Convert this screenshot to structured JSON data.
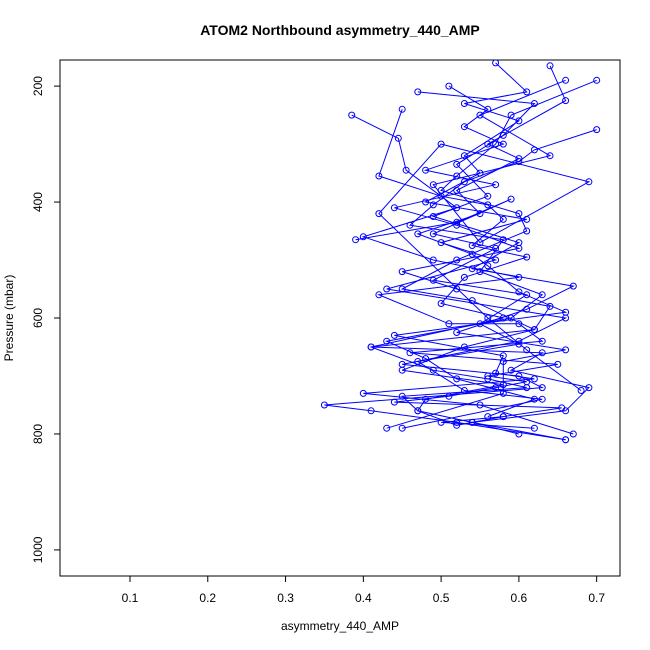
{
  "chart_data": {
    "type": "scatter",
    "title": "ATOM2 Northbound asymmetry_440_AMP",
    "xlabel": "asymmetry_440_AMP",
    "ylabel": "Pressure (mbar)",
    "xlim": [
      0.01,
      0.73
    ],
    "ylim": [
      1045,
      155
    ],
    "y_inverted": true,
    "x_ticks": [
      0.1,
      0.2,
      0.3,
      0.4,
      0.5,
      0.6,
      0.7
    ],
    "x_tick_labels": [
      "0.1",
      "0.2",
      "0.3",
      "0.4",
      "0.5",
      "0.6",
      "0.7"
    ],
    "y_ticks": [
      200,
      400,
      600,
      800,
      1000
    ],
    "y_tick_labels": [
      "200",
      "400",
      "600",
      "800",
      "1000"
    ],
    "grid": false,
    "series_color": "#0000ff",
    "markers": "open-circle",
    "connected": true,
    "series": [
      {
        "x": [
          0.385,
          0.445,
          0.455,
          0.52,
          0.4,
          0.49,
          0.6,
          0.42,
          0.51,
          0.6,
          0.63,
          0.46,
          0.65,
          0.56,
          0.61,
          0.57,
          0.51,
          0.44,
          0.655,
          0.58,
          0.5,
          0.62
        ],
        "y": [
          250,
          290,
          345,
          410,
          460,
          500,
          530,
          560,
          610,
          610,
          640,
          660,
          680,
          700,
          710,
          720,
          735,
          745,
          755,
          770,
          780,
          790
        ]
      },
      {
        "x": [
          0.51,
          0.56,
          0.53,
          0.58,
          0.48,
          0.57,
          0.44,
          0.52,
          0.6,
          0.45,
          0.52,
          0.64,
          0.62,
          0.41,
          0.63,
          0.59,
          0.69,
          0.66,
          0.54,
          0.66
        ],
        "y": [
          200,
          240,
          270,
          300,
          345,
          370,
          410,
          440,
          480,
          520,
          550,
          580,
          620,
          650,
          660,
          690,
          720,
          760,
          780,
          810
        ]
      },
      {
        "x": [
          0.57,
          0.61,
          0.53,
          0.6,
          0.53,
          0.55,
          0.48,
          0.61,
          0.5,
          0.57,
          0.43,
          0.66,
          0.6,
          0.45,
          0.6,
          0.63,
          0.35,
          0.41,
          0.52,
          0.66
        ],
        "y": [
          160,
          210,
          230,
          260,
          320,
          350,
          400,
          430,
          470,
          500,
          550,
          600,
          640,
          680,
          700,
          720,
          750,
          760,
          780,
          810
        ]
      },
      {
        "x": [
          0.64,
          0.66,
          0.56,
          0.6,
          0.52,
          0.55,
          0.47,
          0.54,
          0.56,
          0.6,
          0.66,
          0.44,
          0.58,
          0.57,
          0.62,
          0.4,
          0.55,
          0.67
        ],
        "y": [
          165,
          225,
          300,
          325,
          380,
          420,
          455,
          490,
          510,
          555,
          590,
          630,
          665,
          695,
          705,
          730,
          750,
          800
        ]
      },
      {
        "x": [
          0.7,
          0.59,
          0.57,
          0.52,
          0.5,
          0.6,
          0.61,
          0.52,
          0.45,
          0.54,
          0.62,
          0.53,
          0.45,
          0.58,
          0.48,
          0.47,
          0.54,
          0.6
        ],
        "y": [
          190,
          250,
          300,
          355,
          380,
          420,
          450,
          500,
          550,
          570,
          620,
          650,
          690,
          715,
          740,
          760,
          780,
          800
        ]
      },
      {
        "x": [
          0.7,
          0.62,
          0.6,
          0.53,
          0.49,
          0.46,
          0.58,
          0.55,
          0.63,
          0.59,
          0.43,
          0.48,
          0.52,
          0.62,
          0.56
        ],
        "y": [
          275,
          310,
          330,
          365,
          405,
          440,
          465,
          520,
          560,
          600,
          640,
          670,
          705,
          740,
          770
        ]
      },
      {
        "x": [
          0.45,
          0.42,
          0.5,
          0.56,
          0.58,
          0.54,
          0.61,
          0.53,
          0.5,
          0.58,
          0.41,
          0.49,
          0.56,
          0.61,
          0.45,
          0.47,
          0.52,
          0.58
        ],
        "y": [
          240,
          355,
          390,
          405,
          430,
          475,
          495,
          530,
          575,
          600,
          650,
          690,
          705,
          720,
          735,
          760,
          785,
          770
        ]
      },
      {
        "x": [
          0.47,
          0.62,
          0.58,
          0.52,
          0.56,
          0.49,
          0.6,
          0.54,
          0.67,
          0.61,
          0.52,
          0.66,
          0.58,
          0.58,
          0.43
        ],
        "y": [
          210,
          230,
          285,
          335,
          390,
          425,
          470,
          515,
          545,
          585,
          625,
          655,
          675,
          730,
          790
        ]
      },
      {
        "x": [
          0.39,
          0.52,
          0.59,
          0.49,
          0.57,
          0.49,
          0.61,
          0.55,
          0.6,
          0.47,
          0.53,
          0.63,
          0.45
        ],
        "y": [
          465,
          435,
          395,
          455,
          480,
          535,
          560,
          610,
          645,
          675,
          725,
          740,
          790
        ]
      },
      {
        "x": [
          0.66,
          0.55,
          0.64,
          0.49,
          0.55,
          0.69,
          0.5,
          0.42,
          0.56,
          0.61,
          0.68
        ],
        "y": [
          190,
          250,
          320,
          370,
          470,
          365,
          300,
          420,
          600,
          655,
          725
        ]
      }
    ]
  }
}
